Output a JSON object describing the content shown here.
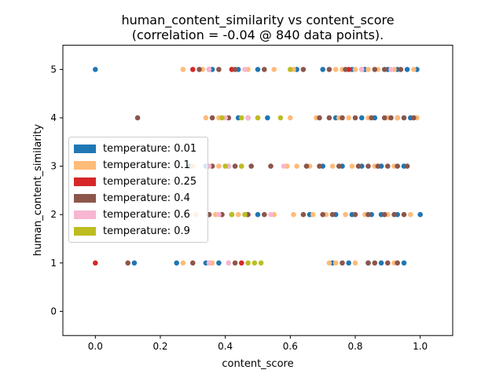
{
  "chart_data": {
    "type": "scatter",
    "title": "human_content_similarity vs content_score",
    "subtitle": "(correlation = -0.04 @ 840 data points).",
    "xlabel": "content_score",
    "ylabel": "human_content_similarity",
    "xlim": [
      -0.1,
      1.1
    ],
    "ylim": [
      -0.5,
      5.5
    ],
    "xticks": [
      "0.0",
      "0.2",
      "0.4",
      "0.6",
      "0.8",
      "1.0"
    ],
    "yticks": [
      "0",
      "1",
      "2",
      "3",
      "4",
      "5"
    ],
    "grid": false,
    "legend_placement": "center-left",
    "series": [
      {
        "name": "temperature: 0.01",
        "color": "#1f77b4",
        "points": [
          [
            0.0,
            5
          ],
          [
            0.36,
            5
          ],
          [
            0.44,
            5
          ],
          [
            0.5,
            5
          ],
          [
            0.62,
            5
          ],
          [
            0.7,
            5
          ],
          [
            0.79,
            5
          ],
          [
            0.83,
            5
          ],
          [
            0.9,
            5
          ],
          [
            0.93,
            5
          ],
          [
            0.96,
            5
          ],
          [
            0.99,
            5
          ],
          [
            0.44,
            4
          ],
          [
            0.53,
            4
          ],
          [
            0.74,
            4
          ],
          [
            0.82,
            4
          ],
          [
            0.86,
            4
          ],
          [
            0.93,
            4
          ],
          [
            0.97,
            4
          ],
          [
            0.29,
            3
          ],
          [
            0.34,
            3
          ],
          [
            0.41,
            3
          ],
          [
            0.7,
            3
          ],
          [
            0.76,
            3
          ],
          [
            0.82,
            3
          ],
          [
            0.88,
            3
          ],
          [
            0.95,
            3
          ],
          [
            0.35,
            2
          ],
          [
            0.42,
            2
          ],
          [
            0.5,
            2
          ],
          [
            0.66,
            2
          ],
          [
            0.74,
            2
          ],
          [
            0.79,
            2
          ],
          [
            0.85,
            2
          ],
          [
            0.88,
            2
          ],
          [
            0.93,
            2
          ],
          [
            1.0,
            2
          ],
          [
            0.12,
            1
          ],
          [
            0.25,
            1
          ],
          [
            0.34,
            1
          ],
          [
            0.38,
            1
          ],
          [
            0.73,
            1
          ],
          [
            0.78,
            1
          ],
          [
            0.84,
            1
          ],
          [
            0.88,
            1
          ],
          [
            0.95,
            1
          ]
        ]
      },
      {
        "name": "temperature: 0.1",
        "color": "#ffbb78",
        "points": [
          [
            0.27,
            5
          ],
          [
            0.33,
            5
          ],
          [
            0.42,
            5
          ],
          [
            0.47,
            5
          ],
          [
            0.55,
            5
          ],
          [
            0.61,
            5
          ],
          [
            0.74,
            5
          ],
          [
            0.76,
            5
          ],
          [
            0.8,
            5
          ],
          [
            0.84,
            5
          ],
          [
            0.87,
            5
          ],
          [
            0.92,
            5
          ],
          [
            0.98,
            5
          ],
          [
            0.34,
            4
          ],
          [
            0.38,
            4
          ],
          [
            0.5,
            4
          ],
          [
            0.6,
            4
          ],
          [
            0.68,
            4
          ],
          [
            0.75,
            4
          ],
          [
            0.78,
            4
          ],
          [
            0.84,
            4
          ],
          [
            0.9,
            4
          ],
          [
            0.93,
            4
          ],
          [
            0.99,
            4
          ],
          [
            0.3,
            3
          ],
          [
            0.38,
            3
          ],
          [
            0.45,
            3
          ],
          [
            0.59,
            3
          ],
          [
            0.62,
            3
          ],
          [
            0.66,
            3
          ],
          [
            0.73,
            3
          ],
          [
            0.79,
            3
          ],
          [
            0.86,
            3
          ],
          [
            0.92,
            3
          ],
          [
            0.31,
            2
          ],
          [
            0.37,
            2
          ],
          [
            0.44,
            2
          ],
          [
            0.55,
            2
          ],
          [
            0.61,
            2
          ],
          [
            0.67,
            2
          ],
          [
            0.71,
            2
          ],
          [
            0.77,
            2
          ],
          [
            0.83,
            2
          ],
          [
            0.9,
            2
          ],
          [
            0.97,
            2
          ],
          [
            0.27,
            1
          ],
          [
            0.36,
            1
          ],
          [
            0.41,
            1
          ],
          [
            0.72,
            1
          ],
          [
            0.74,
            1
          ],
          [
            0.8,
            1
          ],
          [
            0.86,
            1
          ],
          [
            0.92,
            1
          ]
        ]
      },
      {
        "name": "temperature: 0.25",
        "color": "#d62728",
        "points": [
          [
            0.3,
            5
          ],
          [
            0.35,
            5
          ],
          [
            0.42,
            5
          ],
          [
            0.78,
            5
          ],
          [
            0.0,
            1
          ],
          [
            0.45,
            1
          ]
        ]
      },
      {
        "name": "temperature: 0.4",
        "color": "#8c564b",
        "points": [
          [
            0.32,
            5
          ],
          [
            0.38,
            5
          ],
          [
            0.43,
            5
          ],
          [
            0.52,
            5
          ],
          [
            0.64,
            5
          ],
          [
            0.72,
            5
          ],
          [
            0.77,
            5
          ],
          [
            0.82,
            5
          ],
          [
            0.86,
            5
          ],
          [
            0.89,
            5
          ],
          [
            0.94,
            5
          ],
          [
            0.13,
            4
          ],
          [
            0.36,
            4
          ],
          [
            0.41,
            4
          ],
          [
            0.47,
            4
          ],
          [
            0.69,
            4
          ],
          [
            0.72,
            4
          ],
          [
            0.76,
            4
          ],
          [
            0.8,
            4
          ],
          [
            0.85,
            4
          ],
          [
            0.89,
            4
          ],
          [
            0.91,
            4
          ],
          [
            0.95,
            4
          ],
          [
            0.98,
            4
          ],
          [
            0.36,
            3
          ],
          [
            0.43,
            3
          ],
          [
            0.48,
            3
          ],
          [
            0.54,
            3
          ],
          [
            0.65,
            3
          ],
          [
            0.69,
            3
          ],
          [
            0.75,
            3
          ],
          [
            0.81,
            3
          ],
          [
            0.84,
            3
          ],
          [
            0.87,
            3
          ],
          [
            0.9,
            3
          ],
          [
            0.93,
            3
          ],
          [
            0.96,
            3
          ],
          [
            0.35,
            2
          ],
          [
            0.39,
            2
          ],
          [
            0.47,
            2
          ],
          [
            0.52,
            2
          ],
          [
            0.64,
            2
          ],
          [
            0.7,
            2
          ],
          [
            0.73,
            2
          ],
          [
            0.8,
            2
          ],
          [
            0.84,
            2
          ],
          [
            0.89,
            2
          ],
          [
            0.92,
            2
          ],
          [
            0.95,
            2
          ],
          [
            0.1,
            1
          ],
          [
            0.3,
            1
          ],
          [
            0.35,
            1
          ],
          [
            0.43,
            1
          ],
          [
            0.76,
            1
          ],
          [
            0.84,
            1
          ],
          [
            0.86,
            1
          ],
          [
            0.9,
            1
          ],
          [
            0.93,
            1
          ]
        ]
      },
      {
        "name": "temperature: 0.6",
        "color": "#f7b6d2",
        "points": [
          [
            0.35,
            5
          ],
          [
            0.46,
            5
          ],
          [
            0.82,
            5
          ],
          [
            0.91,
            5
          ],
          [
            0.4,
            4
          ],
          [
            0.47,
            4
          ],
          [
            0.35,
            3
          ],
          [
            0.41,
            3
          ],
          [
            0.58,
            3
          ],
          [
            0.38,
            2
          ],
          [
            0.54,
            2
          ],
          [
            0.41,
            1
          ],
          [
            0.35,
            1
          ]
        ]
      },
      {
        "name": "temperature: 0.9",
        "color": "#bcbd22",
        "points": [
          [
            0.6,
            5
          ],
          [
            0.39,
            4
          ],
          [
            0.45,
            4
          ],
          [
            0.5,
            4
          ],
          [
            0.57,
            4
          ],
          [
            0.4,
            3
          ],
          [
            0.45,
            3
          ],
          [
            0.42,
            2
          ],
          [
            0.46,
            2
          ],
          [
            0.47,
            1
          ],
          [
            0.49,
            1
          ],
          [
            0.51,
            1
          ]
        ]
      }
    ]
  }
}
